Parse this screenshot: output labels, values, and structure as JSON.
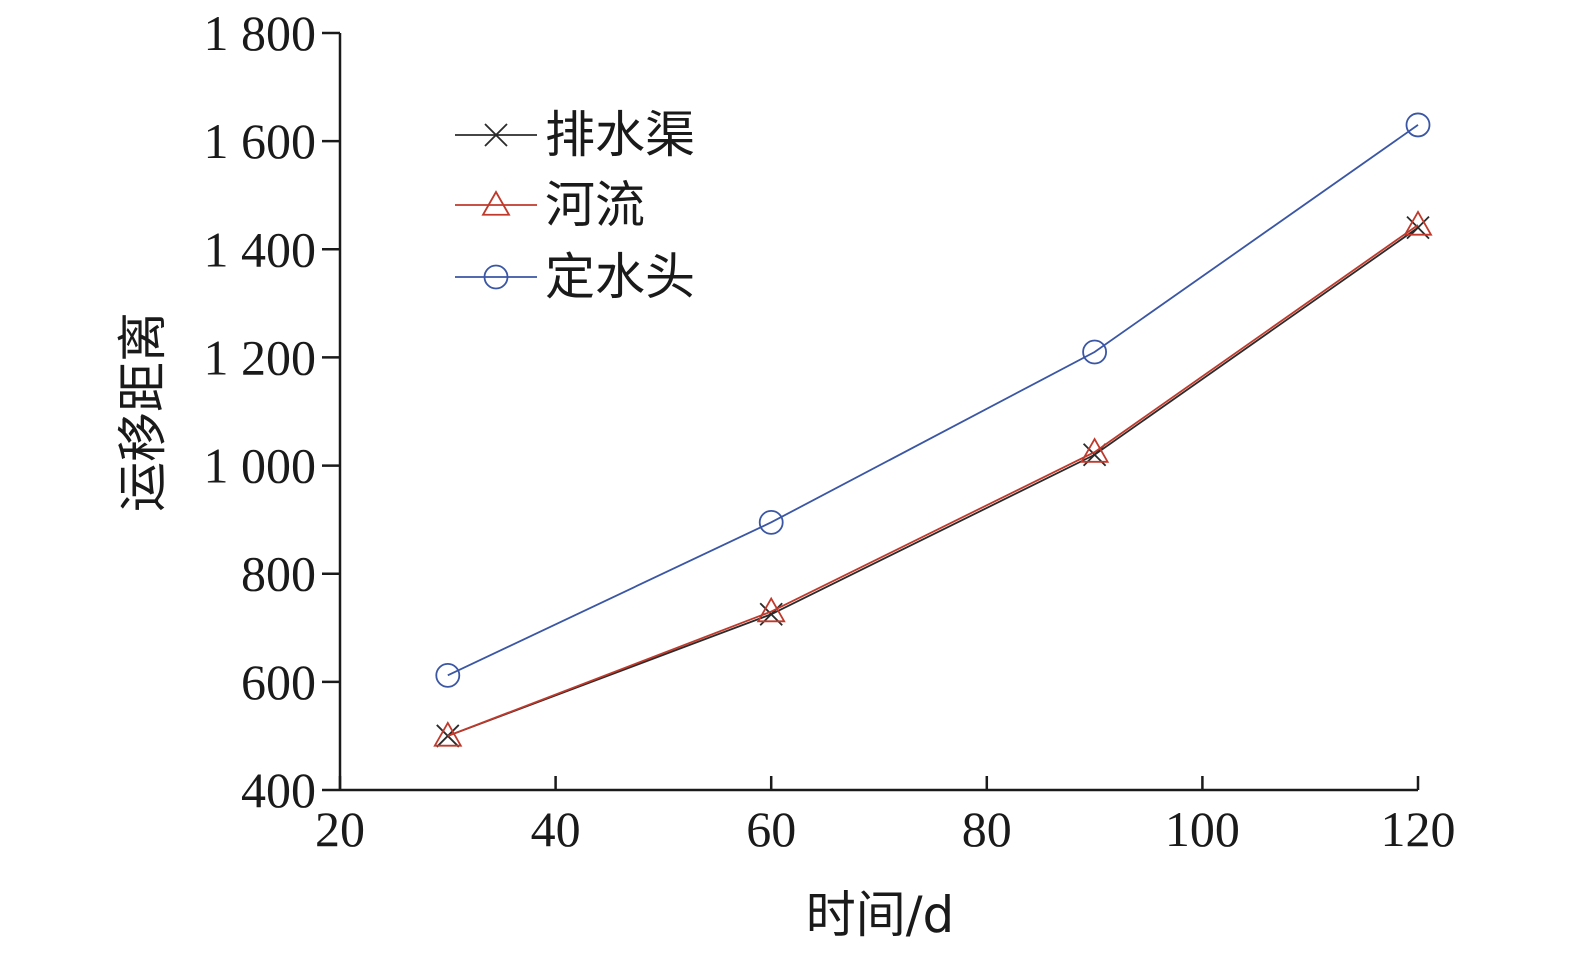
{
  "chart_data": {
    "type": "line",
    "xlabel": "时间/d",
    "ylabel": "运移距离",
    "xlim": [
      20,
      120
    ],
    "ylim": [
      400,
      1800
    ],
    "xticks": [
      "20",
      "40",
      "60",
      "80",
      "100",
      "120"
    ],
    "yticks": [
      "400",
      "600",
      "800",
      "1 000",
      "1 200",
      "1 400",
      "1 600",
      "1 800"
    ],
    "x": [
      30,
      60,
      90,
      120
    ],
    "series": [
      {
        "name": "排水渠",
        "values": [
          500,
          725,
          1020,
          1440
        ],
        "color": "#2b2b2b",
        "marker": "x"
      },
      {
        "name": "河流",
        "values": [
          500,
          730,
          1025,
          1445
        ],
        "color": "#c0392b",
        "marker": "triangle"
      },
      {
        "name": "定水头",
        "values": [
          612,
          895,
          1210,
          1630
        ],
        "color": "#3a56a5",
        "marker": "circle"
      }
    ],
    "legend_position": "top-left",
    "grid": false
  }
}
